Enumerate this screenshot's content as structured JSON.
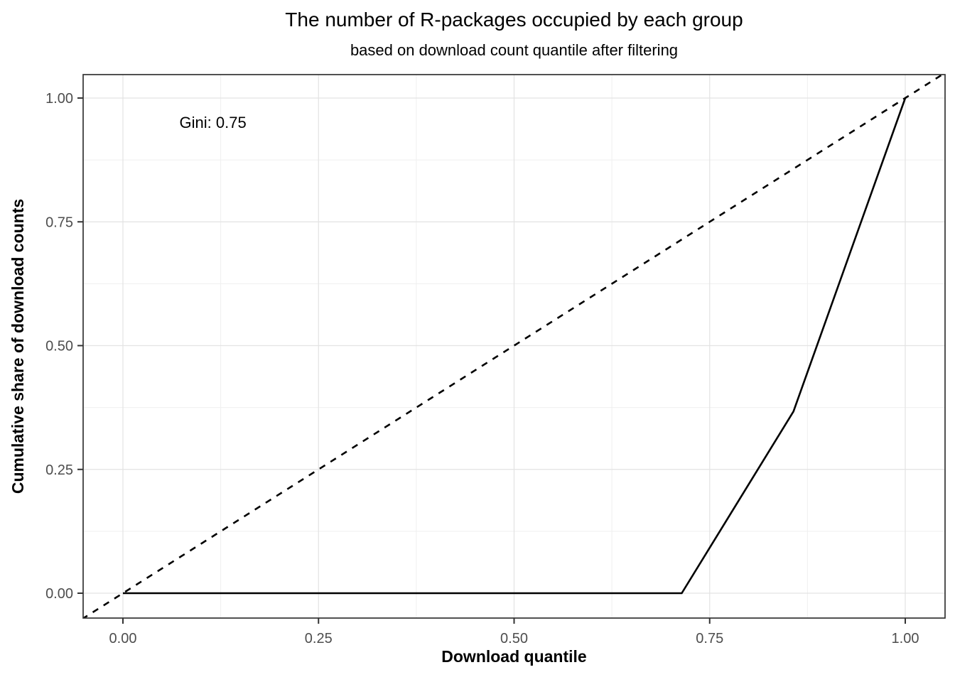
{
  "chart_data": {
    "type": "line",
    "title": "The number of R-packages occupied by each group",
    "subtitle": "based on download count quantile after filtering",
    "xlabel": "Download quantile",
    "ylabel": "Cumulative share of download counts",
    "xlim": [
      0,
      1
    ],
    "ylim": [
      0,
      1
    ],
    "axis_expansion": 0.05,
    "x_ticks": [
      {
        "v": 0.0,
        "label": "0.00"
      },
      {
        "v": 0.25,
        "label": "0.25"
      },
      {
        "v": 0.5,
        "label": "0.50"
      },
      {
        "v": 0.75,
        "label": "0.75"
      },
      {
        "v": 1.0,
        "label": "1.00"
      }
    ],
    "y_ticks": [
      {
        "v": 0.0,
        "label": "0.00"
      },
      {
        "v": 0.25,
        "label": "0.25"
      },
      {
        "v": 0.5,
        "label": "0.50"
      },
      {
        "v": 0.75,
        "label": "0.75"
      },
      {
        "v": 1.0,
        "label": "1.00"
      }
    ],
    "grid": {
      "major_positions": [
        0,
        0.25,
        0.5,
        0.75,
        1
      ],
      "minor_positions": [
        0.125,
        0.375,
        0.625,
        0.875
      ],
      "major_color": "#e3e3e3",
      "minor_color": "#efefef"
    },
    "legend_position": "none",
    "annotation": {
      "label": "Gini: 0.75",
      "x": 0.115,
      "y": 0.95,
      "font_size": 22,
      "color": "#000000"
    },
    "gini_coefficient": 0.75,
    "series": [
      {
        "name": "equality-line",
        "kind": "abline",
        "slope": 1,
        "intercept": 0,
        "linetype": "dashed",
        "color": "#000000",
        "width": 2.6
      },
      {
        "name": "lorenz-curve",
        "kind": "line",
        "linetype": "solid",
        "color": "#000000",
        "width": 2.6,
        "points": [
          [
            0,
            0
          ],
          [
            0.1429,
            0
          ],
          [
            0.2857,
            0
          ],
          [
            0.4286,
            0
          ],
          [
            0.5714,
            0
          ],
          [
            0.7143,
            0
          ],
          [
            0.8571,
            0.367
          ],
          [
            1.0,
            1.0
          ]
        ]
      }
    ],
    "colors": {
      "axis_text": "#4d4d4d",
      "axis_title": "#000000",
      "panel_border": "#333333",
      "tick_mark": "#333333",
      "background": "#ffffff"
    }
  }
}
